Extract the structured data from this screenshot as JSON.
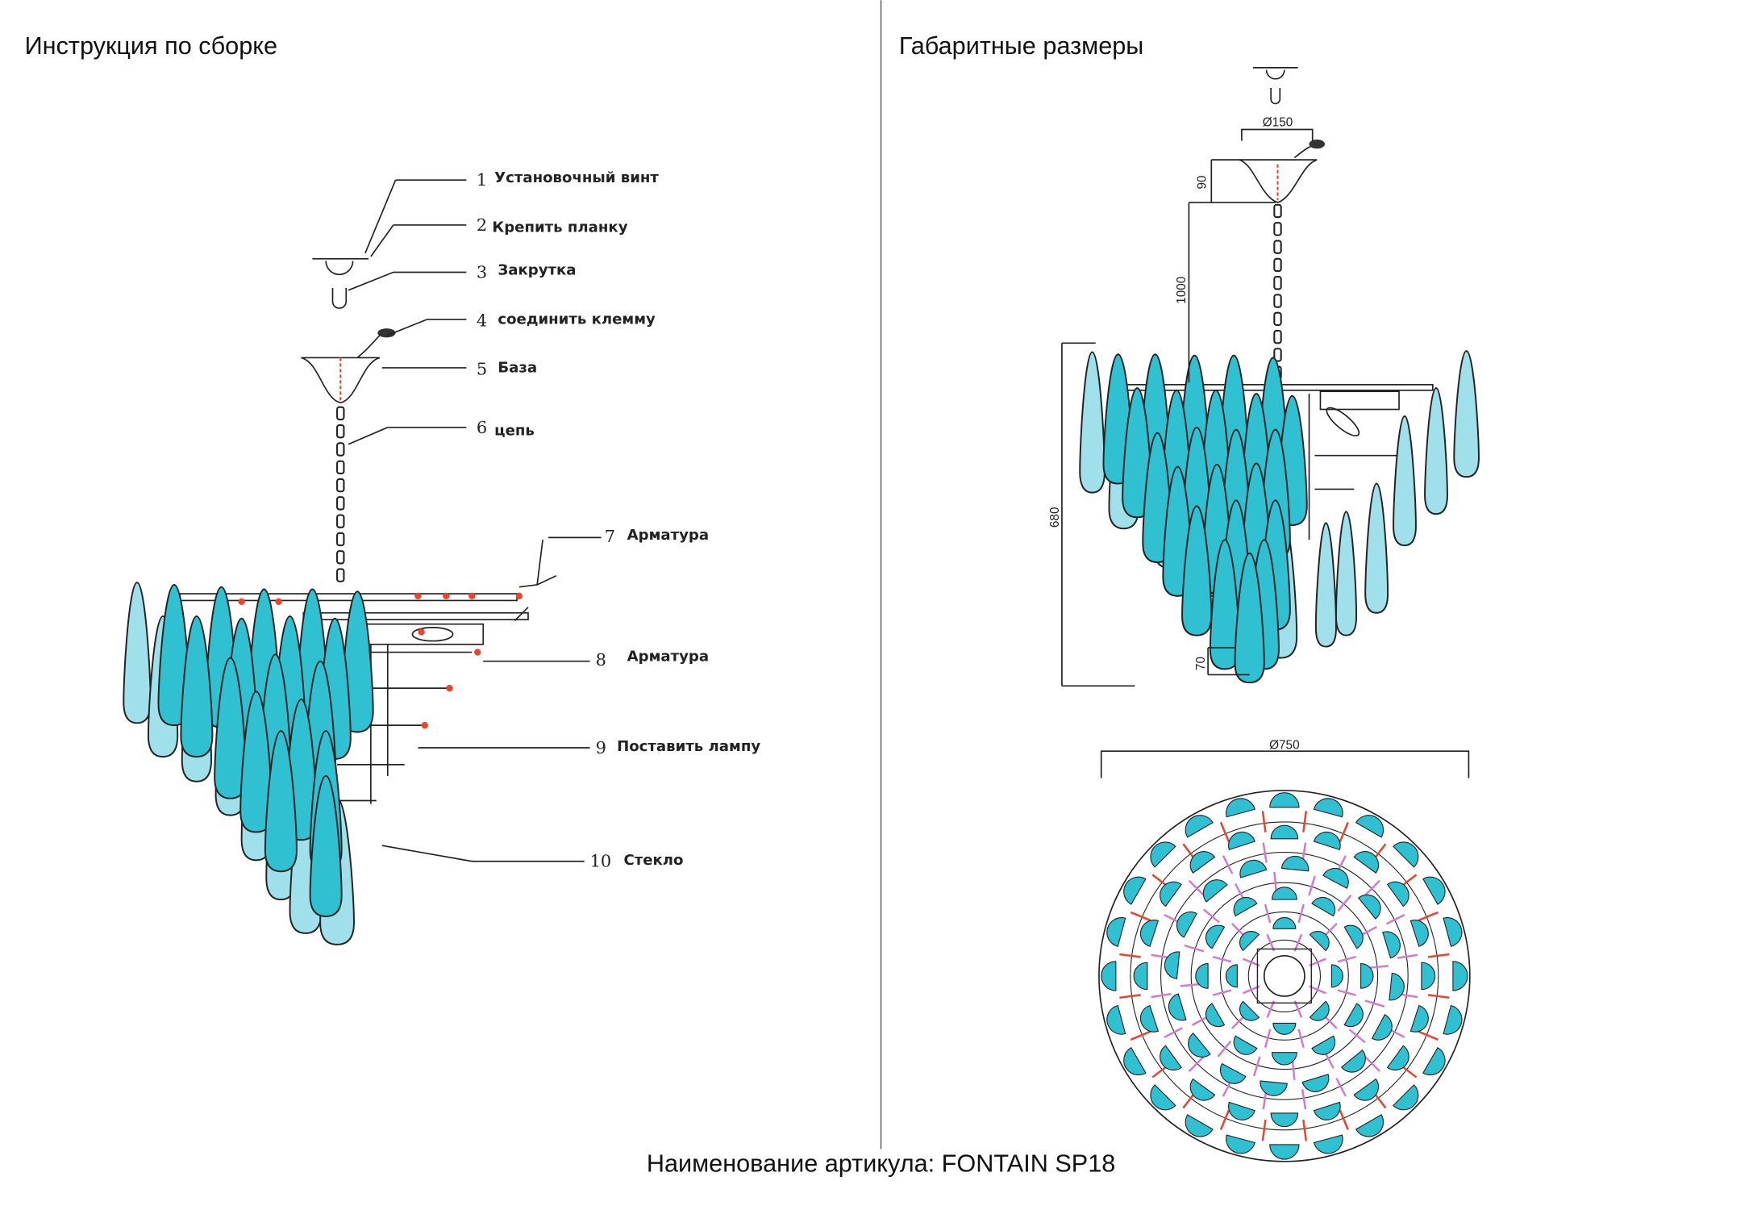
{
  "left_panel": {
    "title": "Инструкция по сборке",
    "callouts": [
      {
        "num": "1",
        "label": "Установочный винт"
      },
      {
        "num": "2",
        "label": "Крепить планку"
      },
      {
        "num": "3",
        "label": "Закрутка"
      },
      {
        "num": "4",
        "label": "соединить клемму"
      },
      {
        "num": "5",
        "label": "База"
      },
      {
        "num": "6",
        "label": "цепь"
      },
      {
        "num": "7",
        "label": "Арматура"
      },
      {
        "num": "8",
        "label": "Арматура"
      },
      {
        "num": "9",
        "label": "Поставить лампу"
      },
      {
        "num": "10",
        "label": "Стекло"
      }
    ]
  },
  "right_panel": {
    "title": "Габаритные размеры",
    "dimensions": {
      "canopy_diameter": "Ø150",
      "canopy_height": "90",
      "chain_length": "1000",
      "body_height": "680",
      "bottom_drop": "70",
      "overall_diameter": "Ø750"
    }
  },
  "footer": {
    "article_name": "Наименование артикула: FONTAIN SP18"
  },
  "colors": {
    "glass": "#2fc0d2",
    "glass_light": "#9fe0ea",
    "outline": "#222222",
    "accent_red": "#e8442e",
    "accent_pink": "#d27ad2"
  }
}
